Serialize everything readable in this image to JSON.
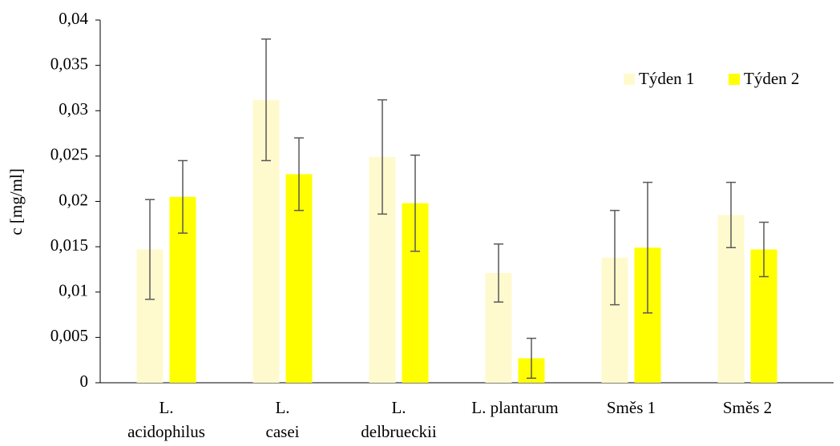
{
  "chart_data": {
    "type": "bar",
    "y_label": "c [mg/ml]",
    "categories": [
      [
        "L.",
        "acidophilus"
      ],
      [
        "L.",
        "casei"
      ],
      [
        "L.",
        "delbrueckii"
      ],
      [
        "L. plantarum"
      ],
      [
        "Směs 1"
      ],
      [
        "Směs 2"
      ]
    ],
    "series": [
      {
        "name": "Týden 1",
        "color": "#fffacd",
        "values": [
          0.0147,
          0.0312,
          0.0249,
          0.0121,
          0.0138,
          0.0185
        ],
        "errors": [
          0.0055,
          0.0067,
          0.0063,
          0.0032,
          0.0052,
          0.0036
        ]
      },
      {
        "name": "Týden 2",
        "color": "#ffff00",
        "values": [
          0.0205,
          0.023,
          0.0198,
          0.0027,
          0.0149,
          0.0147
        ],
        "errors": [
          0.004,
          0.004,
          0.0053,
          0.0022,
          0.0072,
          0.003
        ]
      }
    ],
    "ylim": [
      0,
      0.04
    ],
    "yticks": [
      0,
      {
        "value": 0.005,
        "label": "0,005"
      },
      {
        "value": 0.01,
        "label": "0,01"
      },
      {
        "value": 0.015,
        "label": "0,015"
      },
      {
        "value": 0.02,
        "label": "0,02"
      },
      {
        "value": 0.025,
        "label": "0,025"
      },
      {
        "value": 0.03,
        "label": "0,03"
      },
      {
        "value": 0.035,
        "label": "0,035"
      },
      {
        "value": 0.04,
        "label": "0,04"
      }
    ],
    "grid": false,
    "legend": "top-right"
  }
}
